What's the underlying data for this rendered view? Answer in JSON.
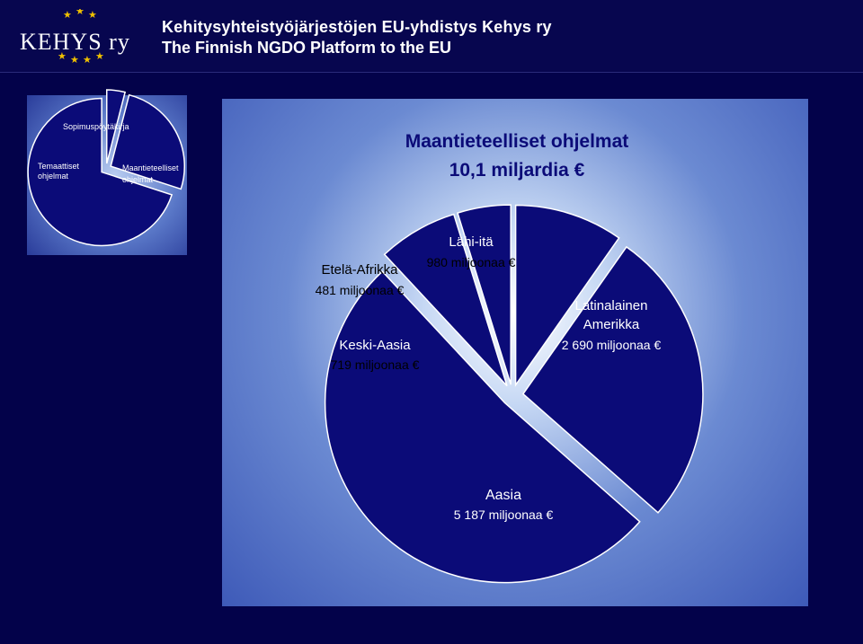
{
  "header": {
    "logo_text": "KEHYS ry",
    "line1": "Kehitysyhteistyöjärjestöjen EU-yhdistys Kehys ry",
    "line2": "The Finnish NGDO Platform to the EU"
  },
  "colors": {
    "background": "#03024a",
    "slice_fill": "#0b0b78",
    "slice_stroke": "#ffffff",
    "title_color": "#0b0b78",
    "star_color": "#f0c000"
  },
  "chart_data": [
    {
      "type": "pie",
      "title": "",
      "exploded": true,
      "categories": [
        "Sopimuspöytäkirja",
        "Temaattiset ohjelmat",
        "Maantieteelliset ohjelmat"
      ],
      "values": [
        4,
        26,
        70
      ],
      "labels": [
        "Sopimuspöytäkirja",
        "Temaattiset ohjelmat",
        "Maantieteelliset ohjelmat"
      ]
    },
    {
      "type": "pie",
      "title": "Maantieteelliset ohjelmat",
      "subtitle": "10,1 miljardia €",
      "unit": "miljoonaa €",
      "exploded": true,
      "categories": [
        "Lähi-itä",
        "Latinalainen Amerikka",
        "Aasia",
        "Keski-Aasia",
        "Etelä-Afrikka"
      ],
      "values": [
        980,
        2690,
        5187,
        719,
        481
      ],
      "label_names": [
        "Lähi-itä",
        "Latinalainen Amerikka",
        "Aasia",
        "Keski-Aasia",
        "Etelä-Afrikka"
      ],
      "label_values": [
        "980 miljoonaa €",
        "2 690 miljoonaa €",
        "5 187 miljoonaa €",
        "719 miljoonaa €",
        "481 miljoonaa €"
      ]
    }
  ]
}
